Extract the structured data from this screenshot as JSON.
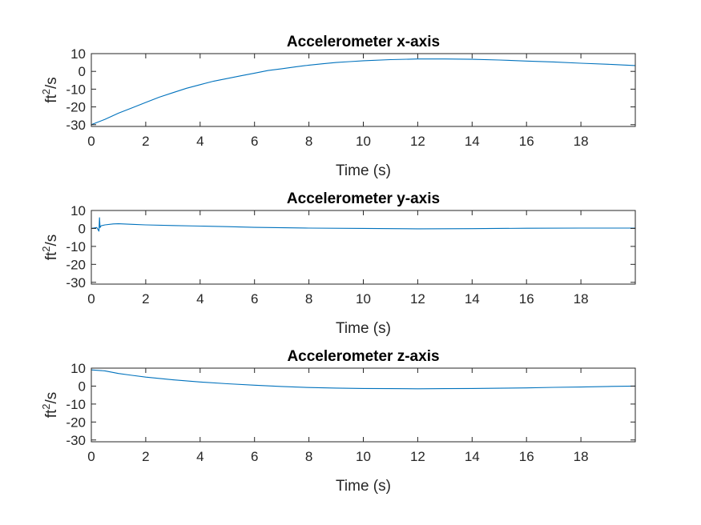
{
  "chart_data": [
    {
      "type": "line",
      "title": "Accelerometer x-axis",
      "xlabel": "Time (s)",
      "ylabel": "ft2/s",
      "ylabel_parts": [
        "ft",
        "2",
        "/s"
      ],
      "xlim": [
        0,
        20
      ],
      "ylim": [
        -31,
        10
      ],
      "xticks": [
        0,
        2,
        4,
        6,
        8,
        10,
        12,
        14,
        16,
        18
      ],
      "yticks": [
        10,
        0,
        -10,
        -20,
        -30
      ],
      "grid": false,
      "line_color": "#0072BD",
      "series": [
        {
          "x": [
            0,
            0.5,
            1,
            1.5,
            2,
            2.5,
            3,
            3.5,
            4,
            4.5,
            5,
            5.5,
            6,
            6.5,
            7,
            7.5,
            8,
            8.5,
            9,
            9.5,
            10,
            11,
            12,
            13,
            14,
            15,
            16,
            17,
            18,
            19,
            20
          ],
          "values": [
            -30,
            -27,
            -23.5,
            -20.5,
            -17.5,
            -14.5,
            -12,
            -9.5,
            -7.5,
            -5.5,
            -4,
            -2.5,
            -1,
            0.5,
            1.5,
            2.5,
            3.5,
            4.3,
            5,
            5.5,
            6,
            6.6,
            7,
            7,
            6.8,
            6.4,
            5.8,
            5.3,
            4.6,
            4,
            3.3
          ]
        }
      ]
    },
    {
      "type": "line",
      "title": "Accelerometer y-axis",
      "xlabel": "Time (s)",
      "ylabel": "ft2/s",
      "ylabel_parts": [
        "ft",
        "2",
        "/s"
      ],
      "xlim": [
        0,
        20
      ],
      "ylim": [
        -31,
        10
      ],
      "xticks": [
        0,
        2,
        4,
        6,
        8,
        10,
        12,
        14,
        16,
        18
      ],
      "yticks": [
        10,
        0,
        -10,
        -20,
        -30
      ],
      "grid": false,
      "line_color": "#0072BD",
      "series": [
        {
          "x": [
            0,
            0.2,
            0.28,
            0.3,
            0.32,
            0.36,
            0.5,
            0.8,
            1,
            1.5,
            2,
            3,
            4,
            5,
            6,
            8,
            10,
            12,
            14,
            16,
            18,
            20
          ],
          "values": [
            0,
            0.5,
            -1.5,
            6,
            0.5,
            1.5,
            2,
            2.5,
            2.6,
            2.3,
            2,
            1.6,
            1.3,
            1,
            0.6,
            0.2,
            0,
            -0.2,
            -0.1,
            0.1,
            0.2,
            0.2
          ]
        }
      ]
    },
    {
      "type": "line",
      "title": "Accelerometer z-axis",
      "xlabel": "Time (s)",
      "ylabel": "ft2/s",
      "ylabel_parts": [
        "ft",
        "2",
        "/s"
      ],
      "xlim": [
        0,
        20
      ],
      "ylim": [
        -31,
        10
      ],
      "xticks": [
        0,
        2,
        4,
        6,
        8,
        10,
        12,
        14,
        16,
        18
      ],
      "yticks": [
        10,
        0,
        -10,
        -20,
        -30
      ],
      "grid": false,
      "line_color": "#0072BD",
      "series": [
        {
          "x": [
            0,
            0.5,
            1,
            1.5,
            2,
            3,
            4,
            5,
            6,
            7,
            8,
            9,
            10,
            11,
            12,
            13,
            14,
            15,
            16,
            17,
            18,
            19,
            20
          ],
          "values": [
            9,
            8.5,
            7,
            6,
            5,
            3.5,
            2.3,
            1.3,
            0.5,
            -0.2,
            -0.8,
            -1.1,
            -1.3,
            -1.4,
            -1.5,
            -1.4,
            -1.3,
            -1.2,
            -1,
            -0.7,
            -0.5,
            -0.2,
            0
          ]
        }
      ]
    }
  ]
}
